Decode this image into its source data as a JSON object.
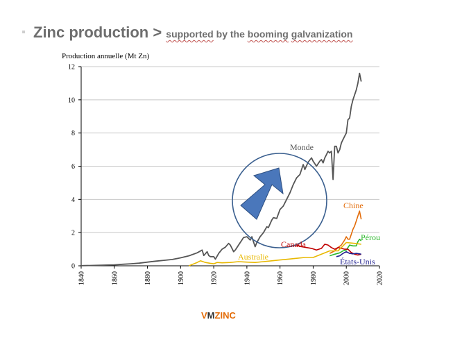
{
  "slide": {
    "title_main": "Zinc production >",
    "title_sub_words": [
      "supported",
      " by the ",
      "booming",
      " ",
      "galvanization"
    ],
    "logo_v": "V",
    "logo_m": "M",
    "logo_zinc": "ZINC"
  },
  "colors": {
    "monde": "#555555",
    "chine": "#e36c09",
    "perou": "#2db82d",
    "canada": "#c00000",
    "etats_unis": "#1f1f8f",
    "australie": "#e8b800",
    "arrow": "#4a77bb",
    "circle": "#3a5f8f",
    "grid": "#c8c8c8"
  },
  "chart_data": {
    "type": "line",
    "ylabel": "Production annuelle (Mt Zn)",
    "xlim": [
      1840,
      2020
    ],
    "ylim": [
      0,
      12
    ],
    "xticks": [
      "1840",
      "1860",
      "1880",
      "1900",
      "1920",
      "1940",
      "1960",
      "1980",
      "2000",
      "2020"
    ],
    "yticks": [
      "0",
      "2",
      "4",
      "6",
      "8",
      "10",
      "12"
    ],
    "grid": true,
    "series": [
      {
        "name": "Monde",
        "x": [
          1840,
          1850,
          1860,
          1865,
          1870,
          1875,
          1880,
          1885,
          1890,
          1895,
          1900,
          1905,
          1910,
          1913,
          1914,
          1916,
          1917,
          1918,
          1920,
          1921,
          1923,
          1925,
          1927,
          1929,
          1930,
          1932,
          1933,
          1935,
          1937,
          1938,
          1940,
          1942,
          1943,
          1944,
          1945,
          1946,
          1948,
          1950,
          1952,
          1953,
          1955,
          1956,
          1958,
          1960,
          1962,
          1964,
          1966,
          1968,
          1970,
          1972,
          1974,
          1975,
          1977,
          1979,
          1980,
          1982,
          1984,
          1985,
          1986,
          1987,
          1988,
          1989,
          1990,
          1991,
          1992,
          1993,
          1994,
          1995,
          1996,
          1997,
          1998,
          1999,
          2000,
          2001,
          2002,
          2003,
          2004,
          2005,
          2006,
          2007,
          2008,
          2009
        ],
        "y": [
          0.01,
          0.03,
          0.06,
          0.09,
          0.12,
          0.16,
          0.22,
          0.28,
          0.33,
          0.38,
          0.48,
          0.6,
          0.78,
          0.95,
          0.62,
          0.85,
          0.62,
          0.55,
          0.55,
          0.4,
          0.75,
          1.0,
          1.12,
          1.35,
          1.25,
          0.85,
          0.95,
          1.25,
          1.55,
          1.7,
          1.75,
          1.55,
          1.75,
          1.45,
          1.15,
          1.4,
          1.75,
          2.0,
          2.35,
          2.3,
          2.75,
          2.9,
          2.85,
          3.4,
          3.6,
          4.0,
          4.4,
          4.9,
          5.3,
          5.5,
          6.1,
          5.8,
          6.25,
          6.5,
          6.3,
          6.0,
          6.3,
          6.4,
          6.2,
          6.5,
          6.7,
          6.9,
          6.8,
          6.9,
          5.2,
          7.2,
          7.2,
          6.8,
          7.0,
          7.4,
          7.6,
          7.8,
          8.0,
          8.8,
          8.9,
          9.6,
          10.0,
          10.3,
          10.6,
          11.0,
          11.6,
          11.1
        ]
      },
      {
        "name": "Chine",
        "x": [
          1990,
          1993,
          1995,
          1997,
          1999,
          2000,
          2001,
          2002,
          2003,
          2004,
          2005,
          2006,
          2007,
          2008,
          2009
        ],
        "y": [
          0.75,
          0.9,
          1.1,
          1.25,
          1.55,
          1.75,
          1.6,
          1.6,
          1.9,
          2.2,
          2.4,
          2.7,
          3.0,
          3.3,
          2.8
        ]
      },
      {
        "name": "Pérou",
        "x": [
          1990,
          1993,
          1996,
          1998,
          2000,
          2002,
          2004,
          2005,
          2006,
          2007,
          2008,
          2009
        ],
        "y": [
          0.6,
          0.7,
          0.78,
          0.9,
          0.95,
          1.25,
          1.2,
          1.2,
          1.2,
          1.45,
          1.6,
          1.5
        ]
      },
      {
        "name": "Canada",
        "x": [
          1967,
          1970,
          1973,
          1976,
          1979,
          1982,
          1985,
          1987,
          1989,
          1991,
          1993,
          1995,
          1997,
          1999,
          2001,
          2003,
          2005,
          2007,
          2009
        ],
        "y": [
          1.2,
          1.25,
          1.15,
          1.1,
          1.05,
          0.95,
          1.05,
          1.3,
          1.25,
          1.1,
          1.0,
          1.1,
          1.05,
          1.0,
          1.0,
          0.8,
          0.7,
          0.65,
          0.7
        ]
      },
      {
        "name": "Australie",
        "x": [
          1905,
          1910,
          1912,
          1915,
          1918,
          1920,
          1922,
          1925,
          1930,
          1935,
          1940,
          1945,
          1950,
          1955,
          1960,
          1965,
          1970,
          1975,
          1980,
          1985,
          1990,
          1995,
          2000,
          2005,
          2009
        ],
        "y": [
          0.0,
          0.2,
          0.3,
          0.2,
          0.15,
          0.12,
          0.2,
          0.18,
          0.2,
          0.25,
          0.22,
          0.2,
          0.25,
          0.3,
          0.35,
          0.4,
          0.45,
          0.5,
          0.5,
          0.7,
          0.9,
          0.9,
          1.4,
          1.35,
          1.3
        ]
      },
      {
        "name": "États-Unis",
        "x": [
          1994,
          1996,
          1998,
          2000,
          2002,
          2004,
          2006,
          2008,
          2009
        ],
        "y": [
          0.55,
          0.6,
          0.75,
          0.85,
          0.75,
          0.72,
          0.75,
          0.72,
          0.7
        ]
      }
    ],
    "annotations": [
      "Monde",
      "Chine",
      "Pérou",
      "Canada",
      "Australie",
      "États-Unis"
    ]
  }
}
